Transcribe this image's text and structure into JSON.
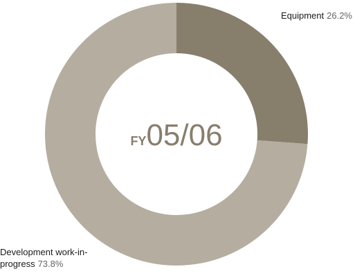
{
  "chart_data": {
    "type": "donut",
    "categories": [
      "Equipment",
      "Development work-in-progress"
    ],
    "values": [
      26.2,
      73.8
    ],
    "value_labels": [
      "26.2%",
      "73.8%"
    ],
    "colors": [
      "#877e6c",
      "#b5ada0"
    ],
    "center_prefix": "FY",
    "center_text": "05/06"
  }
}
